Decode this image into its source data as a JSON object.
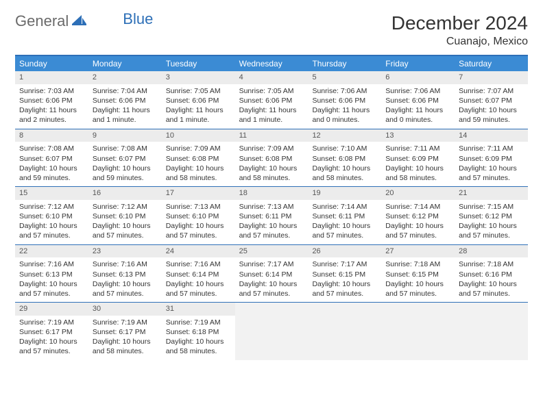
{
  "logo": {
    "part1": "General",
    "part2": "Blue"
  },
  "title": "December 2024",
  "location": "Cuanajo, Mexico",
  "colors": {
    "header_bg": "#3b8bd4",
    "header_text": "#ffffff",
    "rule": "#2d6fb7",
    "daynum_bg": "#ececec",
    "empty_bg": "#f2f2f2",
    "text": "#333333",
    "logo_gray": "#6a6a6a",
    "logo_blue": "#2d6fb7"
  },
  "day_names": [
    "Sunday",
    "Monday",
    "Tuesday",
    "Wednesday",
    "Thursday",
    "Friday",
    "Saturday"
  ],
  "labels": {
    "sunrise": "Sunrise:",
    "sunset": "Sunset:",
    "daylight": "Daylight:"
  },
  "weeks": [
    [
      {
        "n": 1,
        "sunrise": "7:03 AM",
        "sunset": "6:06 PM",
        "daylight": "11 hours and 2 minutes."
      },
      {
        "n": 2,
        "sunrise": "7:04 AM",
        "sunset": "6:06 PM",
        "daylight": "11 hours and 1 minute."
      },
      {
        "n": 3,
        "sunrise": "7:05 AM",
        "sunset": "6:06 PM",
        "daylight": "11 hours and 1 minute."
      },
      {
        "n": 4,
        "sunrise": "7:05 AM",
        "sunset": "6:06 PM",
        "daylight": "11 hours and 1 minute."
      },
      {
        "n": 5,
        "sunrise": "7:06 AM",
        "sunset": "6:06 PM",
        "daylight": "11 hours and 0 minutes."
      },
      {
        "n": 6,
        "sunrise": "7:06 AM",
        "sunset": "6:06 PM",
        "daylight": "11 hours and 0 minutes."
      },
      {
        "n": 7,
        "sunrise": "7:07 AM",
        "sunset": "6:07 PM",
        "daylight": "10 hours and 59 minutes."
      }
    ],
    [
      {
        "n": 8,
        "sunrise": "7:08 AM",
        "sunset": "6:07 PM",
        "daylight": "10 hours and 59 minutes."
      },
      {
        "n": 9,
        "sunrise": "7:08 AM",
        "sunset": "6:07 PM",
        "daylight": "10 hours and 59 minutes."
      },
      {
        "n": 10,
        "sunrise": "7:09 AM",
        "sunset": "6:08 PM",
        "daylight": "10 hours and 58 minutes."
      },
      {
        "n": 11,
        "sunrise": "7:09 AM",
        "sunset": "6:08 PM",
        "daylight": "10 hours and 58 minutes."
      },
      {
        "n": 12,
        "sunrise": "7:10 AM",
        "sunset": "6:08 PM",
        "daylight": "10 hours and 58 minutes."
      },
      {
        "n": 13,
        "sunrise": "7:11 AM",
        "sunset": "6:09 PM",
        "daylight": "10 hours and 58 minutes."
      },
      {
        "n": 14,
        "sunrise": "7:11 AM",
        "sunset": "6:09 PM",
        "daylight": "10 hours and 57 minutes."
      }
    ],
    [
      {
        "n": 15,
        "sunrise": "7:12 AM",
        "sunset": "6:10 PM",
        "daylight": "10 hours and 57 minutes."
      },
      {
        "n": 16,
        "sunrise": "7:12 AM",
        "sunset": "6:10 PM",
        "daylight": "10 hours and 57 minutes."
      },
      {
        "n": 17,
        "sunrise": "7:13 AM",
        "sunset": "6:10 PM",
        "daylight": "10 hours and 57 minutes."
      },
      {
        "n": 18,
        "sunrise": "7:13 AM",
        "sunset": "6:11 PM",
        "daylight": "10 hours and 57 minutes."
      },
      {
        "n": 19,
        "sunrise": "7:14 AM",
        "sunset": "6:11 PM",
        "daylight": "10 hours and 57 minutes."
      },
      {
        "n": 20,
        "sunrise": "7:14 AM",
        "sunset": "6:12 PM",
        "daylight": "10 hours and 57 minutes."
      },
      {
        "n": 21,
        "sunrise": "7:15 AM",
        "sunset": "6:12 PM",
        "daylight": "10 hours and 57 minutes."
      }
    ],
    [
      {
        "n": 22,
        "sunrise": "7:16 AM",
        "sunset": "6:13 PM",
        "daylight": "10 hours and 57 minutes."
      },
      {
        "n": 23,
        "sunrise": "7:16 AM",
        "sunset": "6:13 PM",
        "daylight": "10 hours and 57 minutes."
      },
      {
        "n": 24,
        "sunrise": "7:16 AM",
        "sunset": "6:14 PM",
        "daylight": "10 hours and 57 minutes."
      },
      {
        "n": 25,
        "sunrise": "7:17 AM",
        "sunset": "6:14 PM",
        "daylight": "10 hours and 57 minutes."
      },
      {
        "n": 26,
        "sunrise": "7:17 AM",
        "sunset": "6:15 PM",
        "daylight": "10 hours and 57 minutes."
      },
      {
        "n": 27,
        "sunrise": "7:18 AM",
        "sunset": "6:15 PM",
        "daylight": "10 hours and 57 minutes."
      },
      {
        "n": 28,
        "sunrise": "7:18 AM",
        "sunset": "6:16 PM",
        "daylight": "10 hours and 57 minutes."
      }
    ],
    [
      {
        "n": 29,
        "sunrise": "7:19 AM",
        "sunset": "6:17 PM",
        "daylight": "10 hours and 57 minutes."
      },
      {
        "n": 30,
        "sunrise": "7:19 AM",
        "sunset": "6:17 PM",
        "daylight": "10 hours and 58 minutes."
      },
      {
        "n": 31,
        "sunrise": "7:19 AM",
        "sunset": "6:18 PM",
        "daylight": "10 hours and 58 minutes."
      },
      null,
      null,
      null,
      null
    ]
  ]
}
